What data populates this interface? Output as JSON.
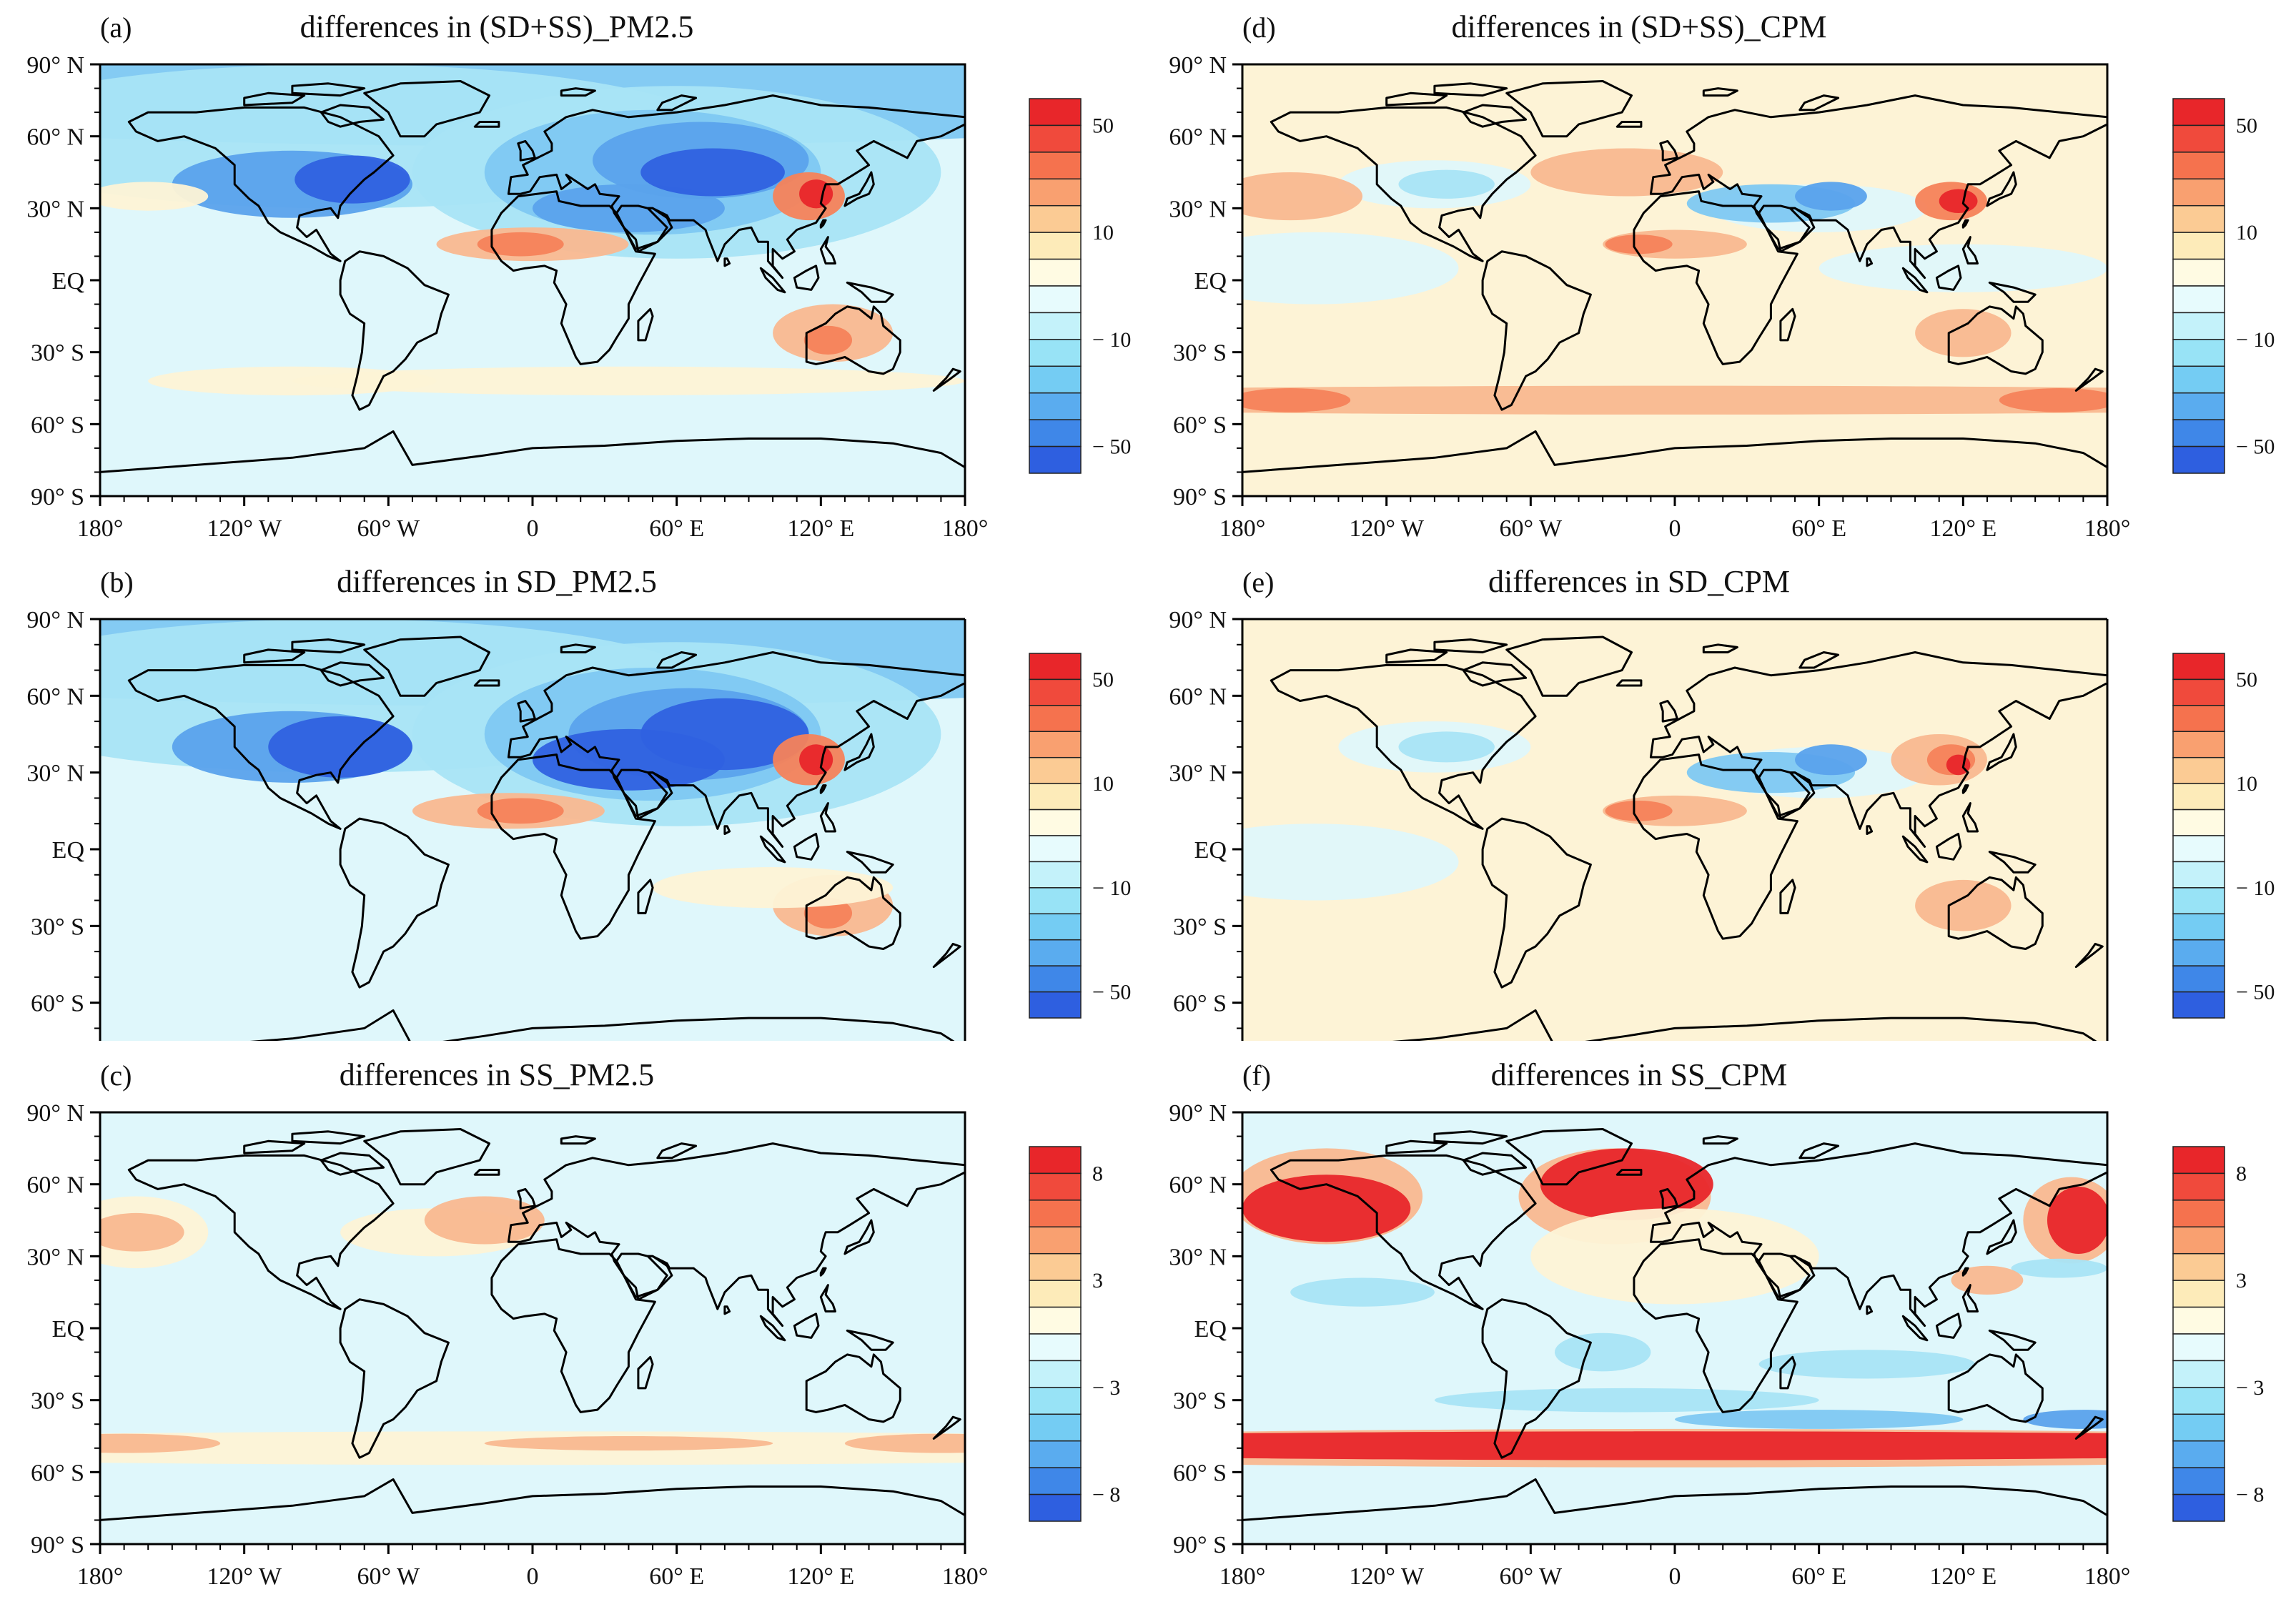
{
  "figure": {
    "panels": [
      {
        "id": "a",
        "label": "(a)",
        "title": "differences in (SD+SS)_PM2.5",
        "variant": "sdss_pm",
        "colorbar": {
          "labels": [
            "50",
            "10",
            "− 10",
            "− 50"
          ]
        },
        "show_x_ticks": true
      },
      {
        "id": "b",
        "label": "(b)",
        "title": "differences in SD_PM2.5",
        "variant": "sd_pm",
        "colorbar": {
          "labels": [
            "50",
            "10",
            "− 10",
            "− 50"
          ]
        },
        "show_x_ticks": false
      },
      {
        "id": "c",
        "label": "(c)",
        "title": "differences in SS_PM2.5",
        "variant": "ss_pm",
        "colorbar": {
          "labels": [
            "8",
            "3",
            "− 3",
            "− 8"
          ]
        },
        "show_x_ticks": true
      },
      {
        "id": "d",
        "label": "(d)",
        "title": "differences in (SD+SS)_CPM",
        "variant": "sdss_cpm",
        "colorbar": {
          "labels": [
            "50",
            "10",
            "− 10",
            "− 50"
          ]
        },
        "show_x_ticks": true
      },
      {
        "id": "e",
        "label": "(e)",
        "title": "differences in SD_CPM",
        "variant": "sd_cpm",
        "colorbar": {
          "labels": [
            "50",
            "10",
            "− 10",
            "− 50"
          ]
        },
        "show_x_ticks": false
      },
      {
        "id": "f",
        "label": "(f)",
        "title": "differences in SS_CPM",
        "variant": "ss_cpm",
        "colorbar": {
          "labels": [
            "8",
            "3",
            "− 3",
            "− 8"
          ]
        },
        "show_x_ticks": true
      }
    ],
    "lat_labels": [
      "90° N",
      "60° N",
      "30° N",
      "EQ",
      "30° S",
      "60° S",
      "90° S"
    ],
    "lat_labels_cut": [
      "90° N",
      "60° N",
      "30° N",
      "EQ",
      "30° S",
      "60° S"
    ],
    "lon_labels": [
      "180°",
      "120° W",
      "60° W",
      "0",
      "60° E",
      "120° E",
      "180°"
    ],
    "colorbar_colors": [
      "#e8262a",
      "#f04a3c",
      "#f5724e",
      "#f9a070",
      "#fbcb94",
      "#fdebb9",
      "#fffbe3",
      "#e7fbfd",
      "#c4f2fa",
      "#98e3f6",
      "#74ccf3",
      "#5aacef",
      "#3f87e8",
      "#2e5fe0"
    ],
    "field_colors": {
      "red": "#e8262a",
      "orange": "#f5825a",
      "peach": "#f9b890",
      "cream": "#fdf3d6",
      "paleblue": "#dff7fb",
      "lightblue": "#a8e4f6",
      "skyblue": "#7ec8f2",
      "midblue": "#5aa2ec",
      "deepblue": "#2f61e0"
    }
  }
}
